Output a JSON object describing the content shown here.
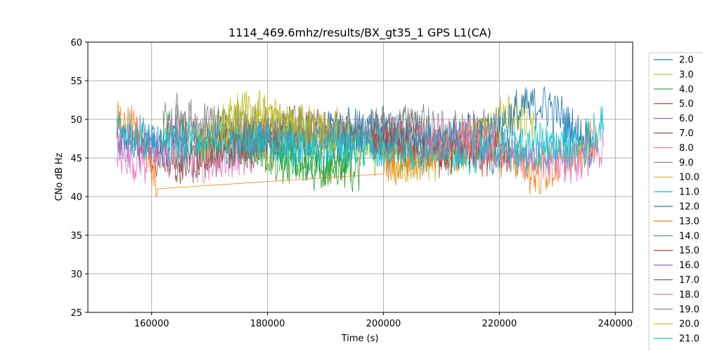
{
  "chart_data": {
    "type": "line",
    "title": "1114_469.6mhz/results/BX_gt35_1 GPS L1(CA)",
    "xlabel": "Time (s)",
    "ylabel": "CNo dB Hz",
    "xlim": [
      149000,
      243000
    ],
    "ylim": [
      25,
      60
    ],
    "xticks": [
      160000,
      180000,
      200000,
      220000,
      240000
    ],
    "yticks": [
      25,
      30,
      35,
      40,
      45,
      50,
      55,
      60
    ],
    "grid": true,
    "legend_position": "right (outside plot, cut off at bottom)",
    "series": [
      {
        "name": "2.0",
        "color": "#1f77b4",
        "x": [
          154000,
          158000,
          162000
        ],
        "y": [
          48.0,
          46.5,
          47.0
        ]
      },
      {
        "name": "3.0",
        "color": "#bcbd22",
        "x": [
          174000,
          180000,
          186000,
          192000
        ],
        "y": [
          47.0,
          46.0,
          47.0,
          46.5
        ]
      },
      {
        "name": "4.0",
        "color": "#2ca02c",
        "x": [
          162000,
          168000,
          174000,
          180000,
          186000,
          192000,
          196000
        ],
        "y": [
          48.0,
          47.5,
          46.5,
          45.5,
          44.0,
          43.5,
          44.0
        ]
      },
      {
        "name": "5.0",
        "color": "#d62728",
        "x": [
          198000,
          202000,
          206000,
          210000,
          214000
        ],
        "y": [
          48.0,
          47.0,
          46.0,
          45.5,
          46.0
        ]
      },
      {
        "name": "6.0",
        "color": "#9467bd",
        "x": [
          176000,
          180000,
          184000,
          188000,
          192000,
          196000
        ],
        "y": [
          47.5,
          48.0,
          48.5,
          48.5,
          48.0,
          47.5
        ]
      },
      {
        "name": "7.0",
        "color": "#8c564b",
        "x": [
          160000,
          164000,
          168000,
          172000,
          176000,
          180000,
          184000,
          188000
        ],
        "y": [
          45.5,
          44.5,
          45.0,
          45.5,
          46.0,
          47.0,
          48.5,
          48.0
        ]
      },
      {
        "name": "8.0",
        "color": "#e377c2",
        "x": [
          154000,
          158000,
          162000,
          166000,
          170000,
          174000,
          178000
        ],
        "y": [
          45.5,
          44.5,
          45.0,
          45.5,
          44.5,
          45.0,
          45.5
        ]
      },
      {
        "name": "9.0",
        "color": "#7f7f7f",
        "x": [
          162000,
          168000,
          174000,
          180000,
          186000,
          192000,
          198000,
          204000,
          210000,
          216000,
          220000
        ],
        "y": [
          50.0,
          49.0,
          48.5,
          48.0,
          49.0,
          48.5,
          48.0,
          48.5,
          48.0,
          48.5,
          48.5
        ]
      },
      {
        "name": "10.0",
        "color": "#bcbd22",
        "x": [
          168000,
          174000,
          180000,
          186000,
          192000,
          198000,
          204000,
          210000,
          216000,
          222000,
          226000
        ],
        "y": [
          46.0,
          50.0,
          50.0,
          49.0,
          48.5,
          46.0,
          44.5,
          45.0,
          47.5,
          51.0,
          49.5
        ]
      },
      {
        "name": "11.0",
        "color": "#17becf",
        "x": [
          176000,
          182000,
          188000,
          194000,
          200000,
          206000,
          212000,
          218000,
          224000,
          230000,
          236000
        ],
        "y": [
          47.5,
          47.0,
          47.0,
          46.5,
          46.5,
          46.5,
          46.0,
          46.0,
          46.5,
          46.5,
          47.0
        ]
      },
      {
        "name": "12.0",
        "color": "#1f77b4",
        "x": [
          190000,
          196000,
          202000,
          208000,
          214000,
          220000,
          224000,
          228000,
          232000,
          236000
        ],
        "y": [
          48.5,
          48.5,
          48.5,
          48.0,
          48.0,
          49.0,
          51.5,
          52.0,
          49.5,
          46.5
        ]
      },
      {
        "name": "13.0",
        "color": "#ff7f0e",
        "x": [
          154000,
          158000,
          161000,
          200000,
          208000,
          212000,
          216000,
          222000,
          226000,
          230000,
          234000,
          237000
        ],
        "y": [
          50.0,
          48.5,
          41.0,
          43.5,
          45.5,
          46.5,
          47.5,
          45.0,
          43.0,
          44.0,
          45.5,
          47.5
        ]
      },
      {
        "name": "14.0",
        "color": "#2ca02c",
        "x": [
          182000,
          186000,
          190000,
          194000
        ],
        "y": [
          45.5,
          44.0,
          43.5,
          44.5
        ]
      },
      {
        "name": "15.0",
        "color": "#d62728",
        "x": [
          198000,
          202000,
          206000,
          210000,
          214000,
          218000,
          222000
        ],
        "y": [
          47.0,
          47.5,
          46.5,
          45.5,
          46.0,
          45.5,
          45.0
        ]
      },
      {
        "name": "16.0",
        "color": "#9467bd",
        "x": [
          154000,
          158000,
          162000,
          166000
        ],
        "y": [
          47.0,
          47.5,
          47.0,
          48.0
        ]
      },
      {
        "name": "17.0",
        "color": "#8c564b",
        "x": [
          164000,
          168000,
          172000,
          176000,
          180000,
          184000
        ],
        "y": [
          44.0,
          45.5,
          47.0,
          46.5,
          47.0,
          48.0
        ]
      },
      {
        "name": "18.0",
        "color": "#e377c2",
        "x": [
          206000,
          212000,
          218000,
          224000,
          230000,
          234000,
          238000
        ],
        "y": [
          47.5,
          47.5,
          47.0,
          45.0,
          44.5,
          45.0,
          46.5
        ]
      },
      {
        "name": "19.0",
        "color": "#7f7f7f",
        "x": [
          164000,
          168000,
          172000,
          178000,
          184000,
          190000,
          196000,
          202000,
          208000
        ],
        "y": [
          51.0,
          49.0,
          49.5,
          49.0,
          49.0,
          48.5,
          48.0,
          49.0,
          49.5
        ]
      },
      {
        "name": "20.0",
        "color": "#bcbd22",
        "x": [
          172000,
          176000,
          180000,
          186000,
          192000
        ],
        "y": [
          49.0,
          51.5,
          50.5,
          49.0,
          48.0
        ]
      },
      {
        "name": "21.0",
        "color": "#17becf",
        "x": [
          154000,
          156000,
          160000,
          164000,
          168000,
          172000,
          176000,
          180000,
          184000,
          188000,
          192000,
          196000,
          200000,
          206000,
          212000,
          218000,
          224000,
          230000,
          234000,
          238000
        ],
        "y": [
          50.0,
          48.0,
          47.0,
          46.5,
          47.0,
          47.5,
          47.0,
          47.0,
          46.5,
          46.0,
          46.5,
          46.5,
          46.0,
          45.5,
          46.0,
          46.0,
          45.5,
          46.0,
          46.5,
          49.5
        ]
      }
    ]
  }
}
